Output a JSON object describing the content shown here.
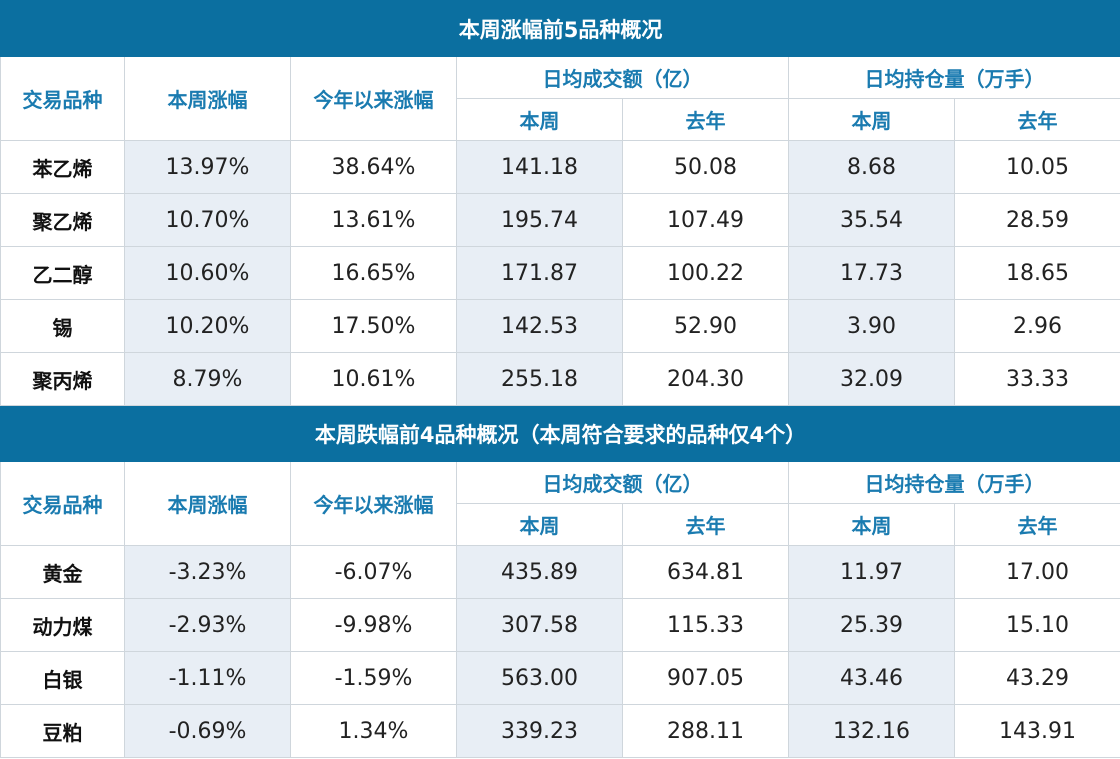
{
  "tables": [
    {
      "title": "本周涨幅前5品种概况",
      "headers": {
        "variety": "交易品种",
        "weekly_change": "本周涨幅",
        "ytd_change": "今年以来涨幅",
        "volume": "日均成交额（亿）",
        "open_interest": "日均持仓量（万手）",
        "this_week": "本周",
        "last_year": "去年"
      },
      "rows": [
        {
          "name": "苯乙烯",
          "weekly": "13.97%",
          "ytd": "38.64%",
          "vol_week": "141.18",
          "vol_year": "50.08",
          "oi_week": "8.68",
          "oi_year": "10.05"
        },
        {
          "name": "聚乙烯",
          "weekly": "10.70%",
          "ytd": "13.61%",
          "vol_week": "195.74",
          "vol_year": "107.49",
          "oi_week": "35.54",
          "oi_year": "28.59"
        },
        {
          "name": "乙二醇",
          "weekly": "10.60%",
          "ytd": "16.65%",
          "vol_week": "171.87",
          "vol_year": "100.22",
          "oi_week": "17.73",
          "oi_year": "18.65"
        },
        {
          "name": "锡",
          "weekly": "10.20%",
          "ytd": "17.50%",
          "vol_week": "142.53",
          "vol_year": "52.90",
          "oi_week": "3.90",
          "oi_year": "2.96"
        },
        {
          "name": "聚丙烯",
          "weekly": "8.79%",
          "ytd": "10.61%",
          "vol_week": "255.18",
          "vol_year": "204.30",
          "oi_week": "32.09",
          "oi_year": "33.33"
        }
      ]
    },
    {
      "title": "本周跌幅前4品种概况（本周符合要求的品种仅4个）",
      "headers": {
        "variety": "交易品种",
        "weekly_change": "本周涨幅",
        "ytd_change": "今年以来涨幅",
        "volume": "日均成交额（亿）",
        "open_interest": "日均持仓量（万手）",
        "this_week": "本周",
        "last_year": "去年"
      },
      "rows": [
        {
          "name": "黄金",
          "weekly": "-3.23%",
          "ytd": "-6.07%",
          "vol_week": "435.89",
          "vol_year": "634.81",
          "oi_week": "11.97",
          "oi_year": "17.00"
        },
        {
          "name": "动力煤",
          "weekly": "-2.93%",
          "ytd": "-9.98%",
          "vol_week": "307.58",
          "vol_year": "115.33",
          "oi_week": "25.39",
          "oi_year": "15.10"
        },
        {
          "name": "白银",
          "weekly": "-1.11%",
          "ytd": "-1.59%",
          "vol_week": "563.00",
          "vol_year": "907.05",
          "oi_week": "43.46",
          "oi_year": "43.29"
        },
        {
          "name": "豆粕",
          "weekly": "-0.69%",
          "ytd": "1.34%",
          "vol_week": "339.23",
          "vol_year": "288.11",
          "oi_week": "132.16",
          "oi_year": "143.91"
        }
      ]
    }
  ]
}
